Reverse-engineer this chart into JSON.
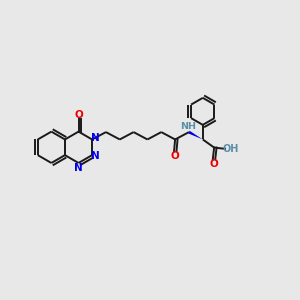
{
  "bg_color": "#e8e8e8",
  "bond_color": "#1a1a1a",
  "N_color": "#0000ee",
  "O_color": "#ee0000",
  "H_color": "#5b8fa8",
  "figsize": [
    3.0,
    3.0
  ],
  "dpi": 100,
  "xlim": [
    -0.5,
    10.5
  ],
  "ylim": [
    1.0,
    9.0
  ]
}
